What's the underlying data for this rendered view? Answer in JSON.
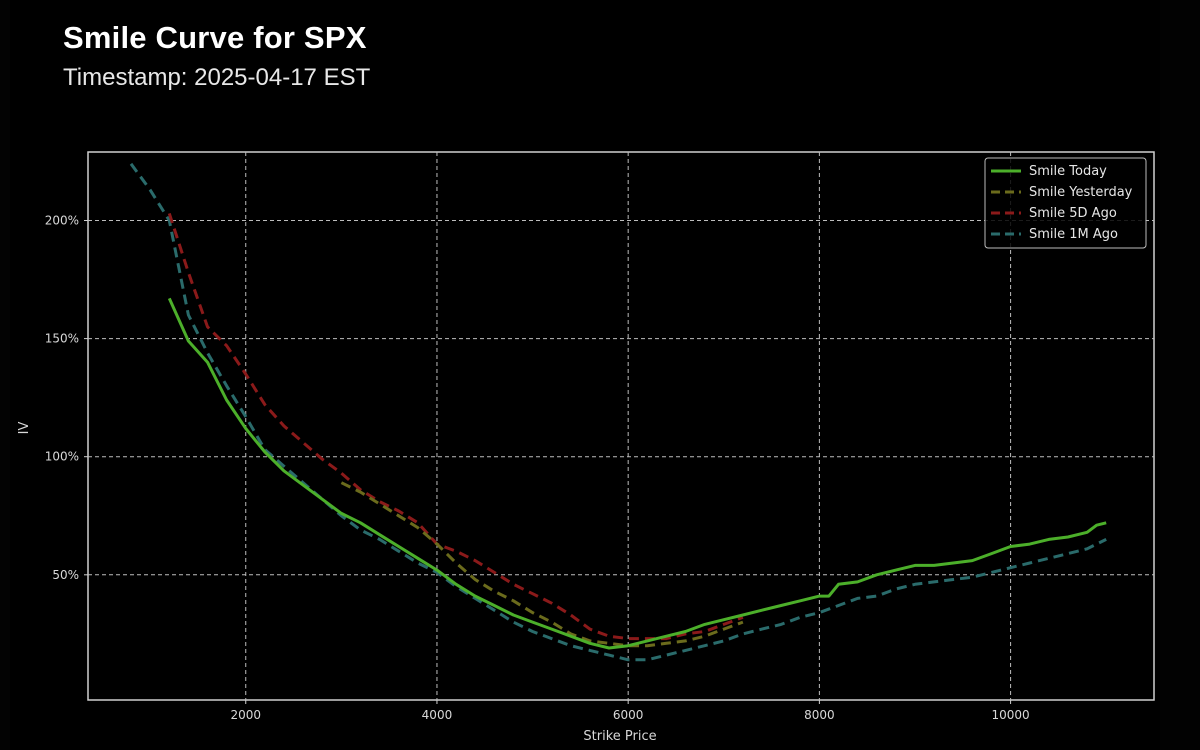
{
  "header": {
    "title": "Smile Curve for SPX",
    "subtitle": "Timestamp: 2025-04-17 EST"
  },
  "colors": {
    "background": "#000000",
    "today": "#4caf2a",
    "yesterday": "#6b6b1c",
    "five_day": "#8b1a1a",
    "one_month": "#2a6b6b",
    "grid": "#bdbdbd",
    "axis": "#d0d0d0"
  },
  "chart_data": {
    "type": "line",
    "title": "Smile Curve for SPX",
    "subtitle": "Timestamp: 2025-04-17 EST",
    "xlabel": "Strike Price",
    "ylabel": "IV",
    "xlim": [
      350,
      11500
    ],
    "ylim": [
      -3,
      229
    ],
    "xticks": [
      2000,
      4000,
      6000,
      8000,
      10000
    ],
    "xtick_labels": [
      "2000",
      "4000",
      "6000",
      "8000",
      "10000"
    ],
    "yticks": [
      50,
      100,
      150,
      200
    ],
    "ytick_labels": [
      "50%",
      "100%",
      "150%",
      "200%"
    ],
    "grid": true,
    "legend_position": "upper right",
    "series": [
      {
        "name": "Smile Today",
        "style": "solid",
        "color": "#4caf2a",
        "x": [
          1200,
          1400,
          1600,
          1800,
          2000,
          2200,
          2400,
          2600,
          2800,
          3000,
          3200,
          3400,
          3600,
          3800,
          4000,
          4200,
          4400,
          4600,
          4800,
          5000,
          5200,
          5400,
          5600,
          5800,
          6000,
          6200,
          6400,
          6600,
          6800,
          7000,
          7200,
          7400,
          7600,
          7800,
          8000,
          8100,
          8200,
          8400,
          8600,
          8800,
          9000,
          9200,
          9400,
          9600,
          9800,
          10000,
          10200,
          10400,
          10600,
          10800,
          10900,
          11000
        ],
        "values": [
          167,
          149,
          140,
          124,
          112,
          102,
          94,
          88,
          82,
          76,
          72,
          67,
          62,
          57,
          52,
          46,
          41,
          37,
          33,
          30,
          27,
          24,
          21,
          19,
          20,
          22,
          24,
          26,
          29,
          31,
          33,
          35,
          37,
          39,
          41,
          41,
          46,
          47,
          50,
          52,
          54,
          54,
          55,
          56,
          59,
          62,
          63,
          65,
          66,
          68,
          71,
          72
        ]
      },
      {
        "name": "Smile Yesterday",
        "style": "dashed",
        "color": "#6b6b1c",
        "x": [
          3000,
          3200,
          3400,
          3600,
          3800,
          4000,
          4200,
          4400,
          4600,
          4800,
          5000,
          5200,
          5400,
          5600,
          5800,
          6000,
          6200,
          6400,
          6600,
          6800,
          7000,
          7200
        ],
        "values": [
          89,
          85,
          80,
          75,
          70,
          63,
          55,
          48,
          43,
          39,
          34,
          30,
          25,
          22,
          21,
          20,
          20,
          21,
          22,
          24,
          27,
          30
        ]
      },
      {
        "name": "Smile 5D Ago",
        "style": "dashed",
        "color": "#8b1a1a",
        "x": [
          1200,
          1400,
          1600,
          1800,
          2000,
          2200,
          2400,
          2600,
          2800,
          3000,
          3200,
          3400,
          3600,
          3800,
          4000,
          4200,
          4400,
          4600,
          4800,
          5000,
          5200,
          5400,
          5600,
          5800,
          6000,
          6200,
          6400,
          6600,
          6800,
          7000,
          7200
        ],
        "values": [
          203,
          178,
          155,
          147,
          135,
          122,
          113,
          106,
          99,
          93,
          86,
          81,
          77,
          72,
          63,
          60,
          56,
          51,
          46,
          42,
          38,
          33,
          27,
          24,
          23,
          23,
          23,
          25,
          26,
          29,
          32
        ]
      },
      {
        "name": "Smile 1M Ago",
        "style": "dashed",
        "color": "#2a6b6b",
        "x": [
          800,
          1000,
          1200,
          1400,
          1600,
          1800,
          2000,
          2200,
          2400,
          2600,
          2800,
          3000,
          3200,
          3400,
          3600,
          3800,
          4000,
          4200,
          4400,
          4600,
          4800,
          5000,
          5200,
          5400,
          5600,
          5800,
          6000,
          6200,
          6400,
          6600,
          6800,
          7000,
          7200,
          7400,
          7600,
          7800,
          8000,
          8200,
          8400,
          8600,
          8800,
          9000,
          9200,
          9400,
          9600,
          9800,
          10000,
          10200,
          10400,
          10600,
          10800,
          10900,
          11000
        ],
        "values": [
          224,
          213,
          200,
          160,
          144,
          130,
          117,
          103,
          96,
          89,
          82,
          75,
          69,
          65,
          60,
          55,
          51,
          45,
          40,
          35,
          30,
          26,
          23,
          20,
          18,
          16,
          14,
          14,
          16,
          18,
          20,
          22,
          25,
          27,
          29,
          32,
          34,
          37,
          40,
          41,
          44,
          46,
          47,
          48,
          49,
          51,
          53,
          55,
          57,
          59,
          61,
          63,
          65
        ]
      }
    ]
  },
  "legend": {
    "items": [
      {
        "label": "Smile Today"
      },
      {
        "label": "Smile Yesterday"
      },
      {
        "label": "Smile 5D Ago"
      },
      {
        "label": "Smile 1M Ago"
      }
    ]
  }
}
